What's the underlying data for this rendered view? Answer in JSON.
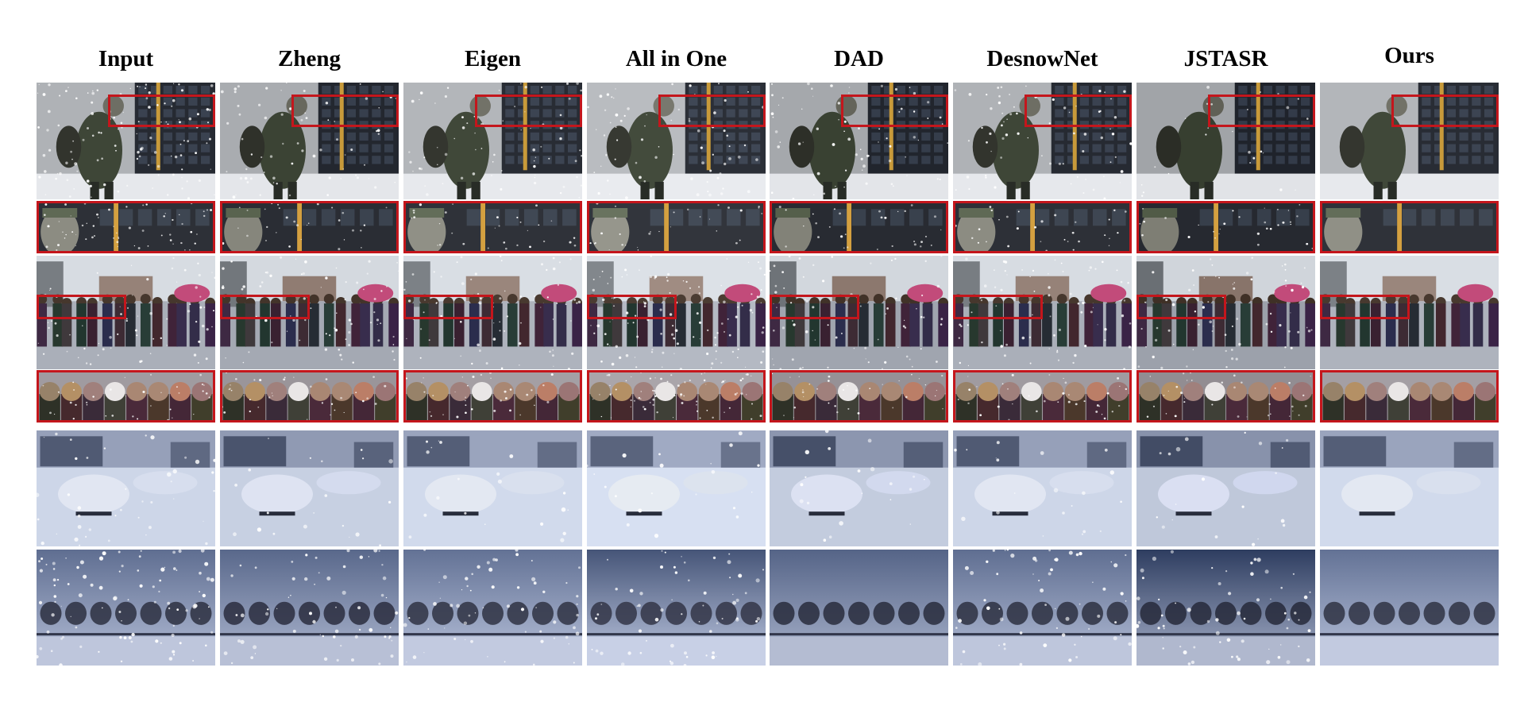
{
  "figure": {
    "columns": [
      "Input",
      "Zheng",
      "Eigen",
      "All in One",
      "DAD",
      "DesnowNet",
      "JSTASR",
      "Ours"
    ],
    "rows": [
      {
        "name": "soldier-scene",
        "kind": "full",
        "highlight": true
      },
      {
        "name": "soldier-crop",
        "kind": "crop"
      },
      {
        "name": "crowd-scene",
        "kind": "full",
        "highlight": true
      },
      {
        "name": "crowd-crop",
        "kind": "crop"
      },
      {
        "name": "car-scene",
        "kind": "full",
        "highlight": false
      },
      {
        "name": "trees-scene",
        "kind": "full",
        "highlight": false
      }
    ],
    "colors": {
      "highlight_box": "#c4161c"
    }
  }
}
